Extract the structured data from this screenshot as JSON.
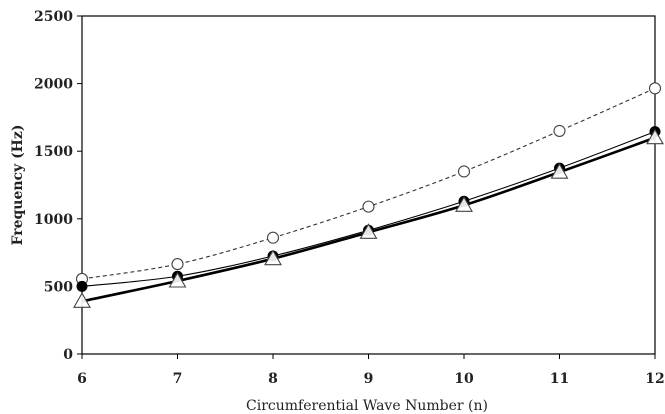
{
  "chart_data": {
    "type": "line",
    "title": "",
    "xlabel": "Circumferential Wave Number (n)",
    "ylabel": "Frequency (Hz)",
    "xlim": [
      6,
      12
    ],
    "ylim": [
      0,
      2500
    ],
    "x_ticks": [
      6,
      7,
      8,
      9,
      10,
      11,
      12
    ],
    "y_ticks": [
      0,
      500,
      1000,
      1500,
      2000,
      2500
    ],
    "grid": false,
    "legend": "none",
    "x": [
      6,
      7,
      8,
      9,
      10,
      11,
      12
    ],
    "series": [
      {
        "values": [
          555,
          665,
          860,
          1090,
          1350,
          1650,
          1965
        ],
        "line_style": "dashed",
        "marker": "open-circle",
        "color": "#333333"
      },
      {
        "values": [
          500,
          575,
          725,
          915,
          1130,
          1375,
          1645
        ],
        "line_style": "solid-thin",
        "marker": "filled-circle",
        "color": "#000000"
      },
      {
        "values": [
          390,
          540,
          705,
          900,
          1100,
          1345,
          1600
        ],
        "line_style": "solid-thick",
        "marker": "open-triangle",
        "color": "#000000"
      }
    ]
  }
}
